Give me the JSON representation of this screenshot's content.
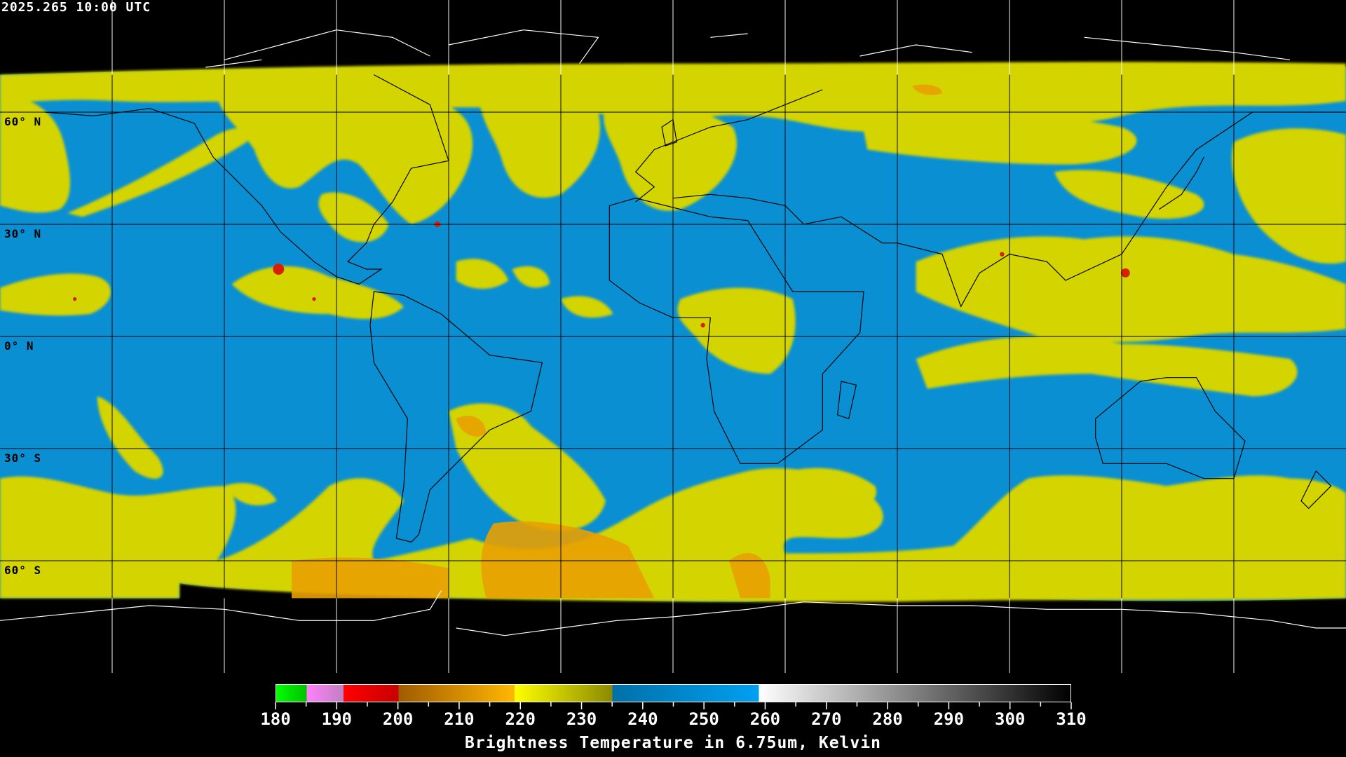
{
  "header": {
    "timestamp": "2025.265 10:00 UTC"
  },
  "map": {
    "projection": "equirectangular",
    "lon_range": [
      -180,
      180
    ],
    "lat_range": [
      -90,
      90
    ],
    "graticule_step_deg": 30,
    "lat_labels": [
      "60° N",
      "30° N",
      "0° N",
      "30° S",
      "60° S"
    ],
    "colors": {
      "background": "#000000",
      "moist_field": "#0a8fd2",
      "cloud_field": "#d4d400",
      "cold_cloud": "#e8a000",
      "very_cold": "#d82000",
      "coast_over_data": "#000000",
      "coast_over_black": "#ffffff",
      "grid": "#000000",
      "grid_over_black": "#ffffff"
    }
  },
  "colorbar": {
    "min": 180,
    "max": 310,
    "tick_labels": [
      "180",
      "190",
      "200",
      "210",
      "220",
      "230",
      "240",
      "250",
      "260",
      "270",
      "280",
      "290",
      "300",
      "310"
    ],
    "minor_tick_step": 5,
    "title": "Brightness Temperature in 6.75um, Kelvin",
    "segments": [
      {
        "from": 180,
        "to": 185,
        "start": "#00ff00",
        "end": "#00c000"
      },
      {
        "from": 185,
        "to": 191,
        "start": "#ff80ff",
        "end": "#c080c0"
      },
      {
        "from": 191,
        "to": 200,
        "start": "#ff0000",
        "end": "#c80000"
      },
      {
        "from": 200,
        "to": 219,
        "start": "#a05a00",
        "end": "#ffb800"
      },
      {
        "from": 219,
        "to": 235,
        "start": "#ffff00",
        "end": "#8a8a00"
      },
      {
        "from": 235,
        "to": 259,
        "start": "#0070a8",
        "end": "#00a0f2"
      },
      {
        "from": 259,
        "to": 310,
        "start": "#ffffff",
        "end": "#000000"
      }
    ]
  }
}
